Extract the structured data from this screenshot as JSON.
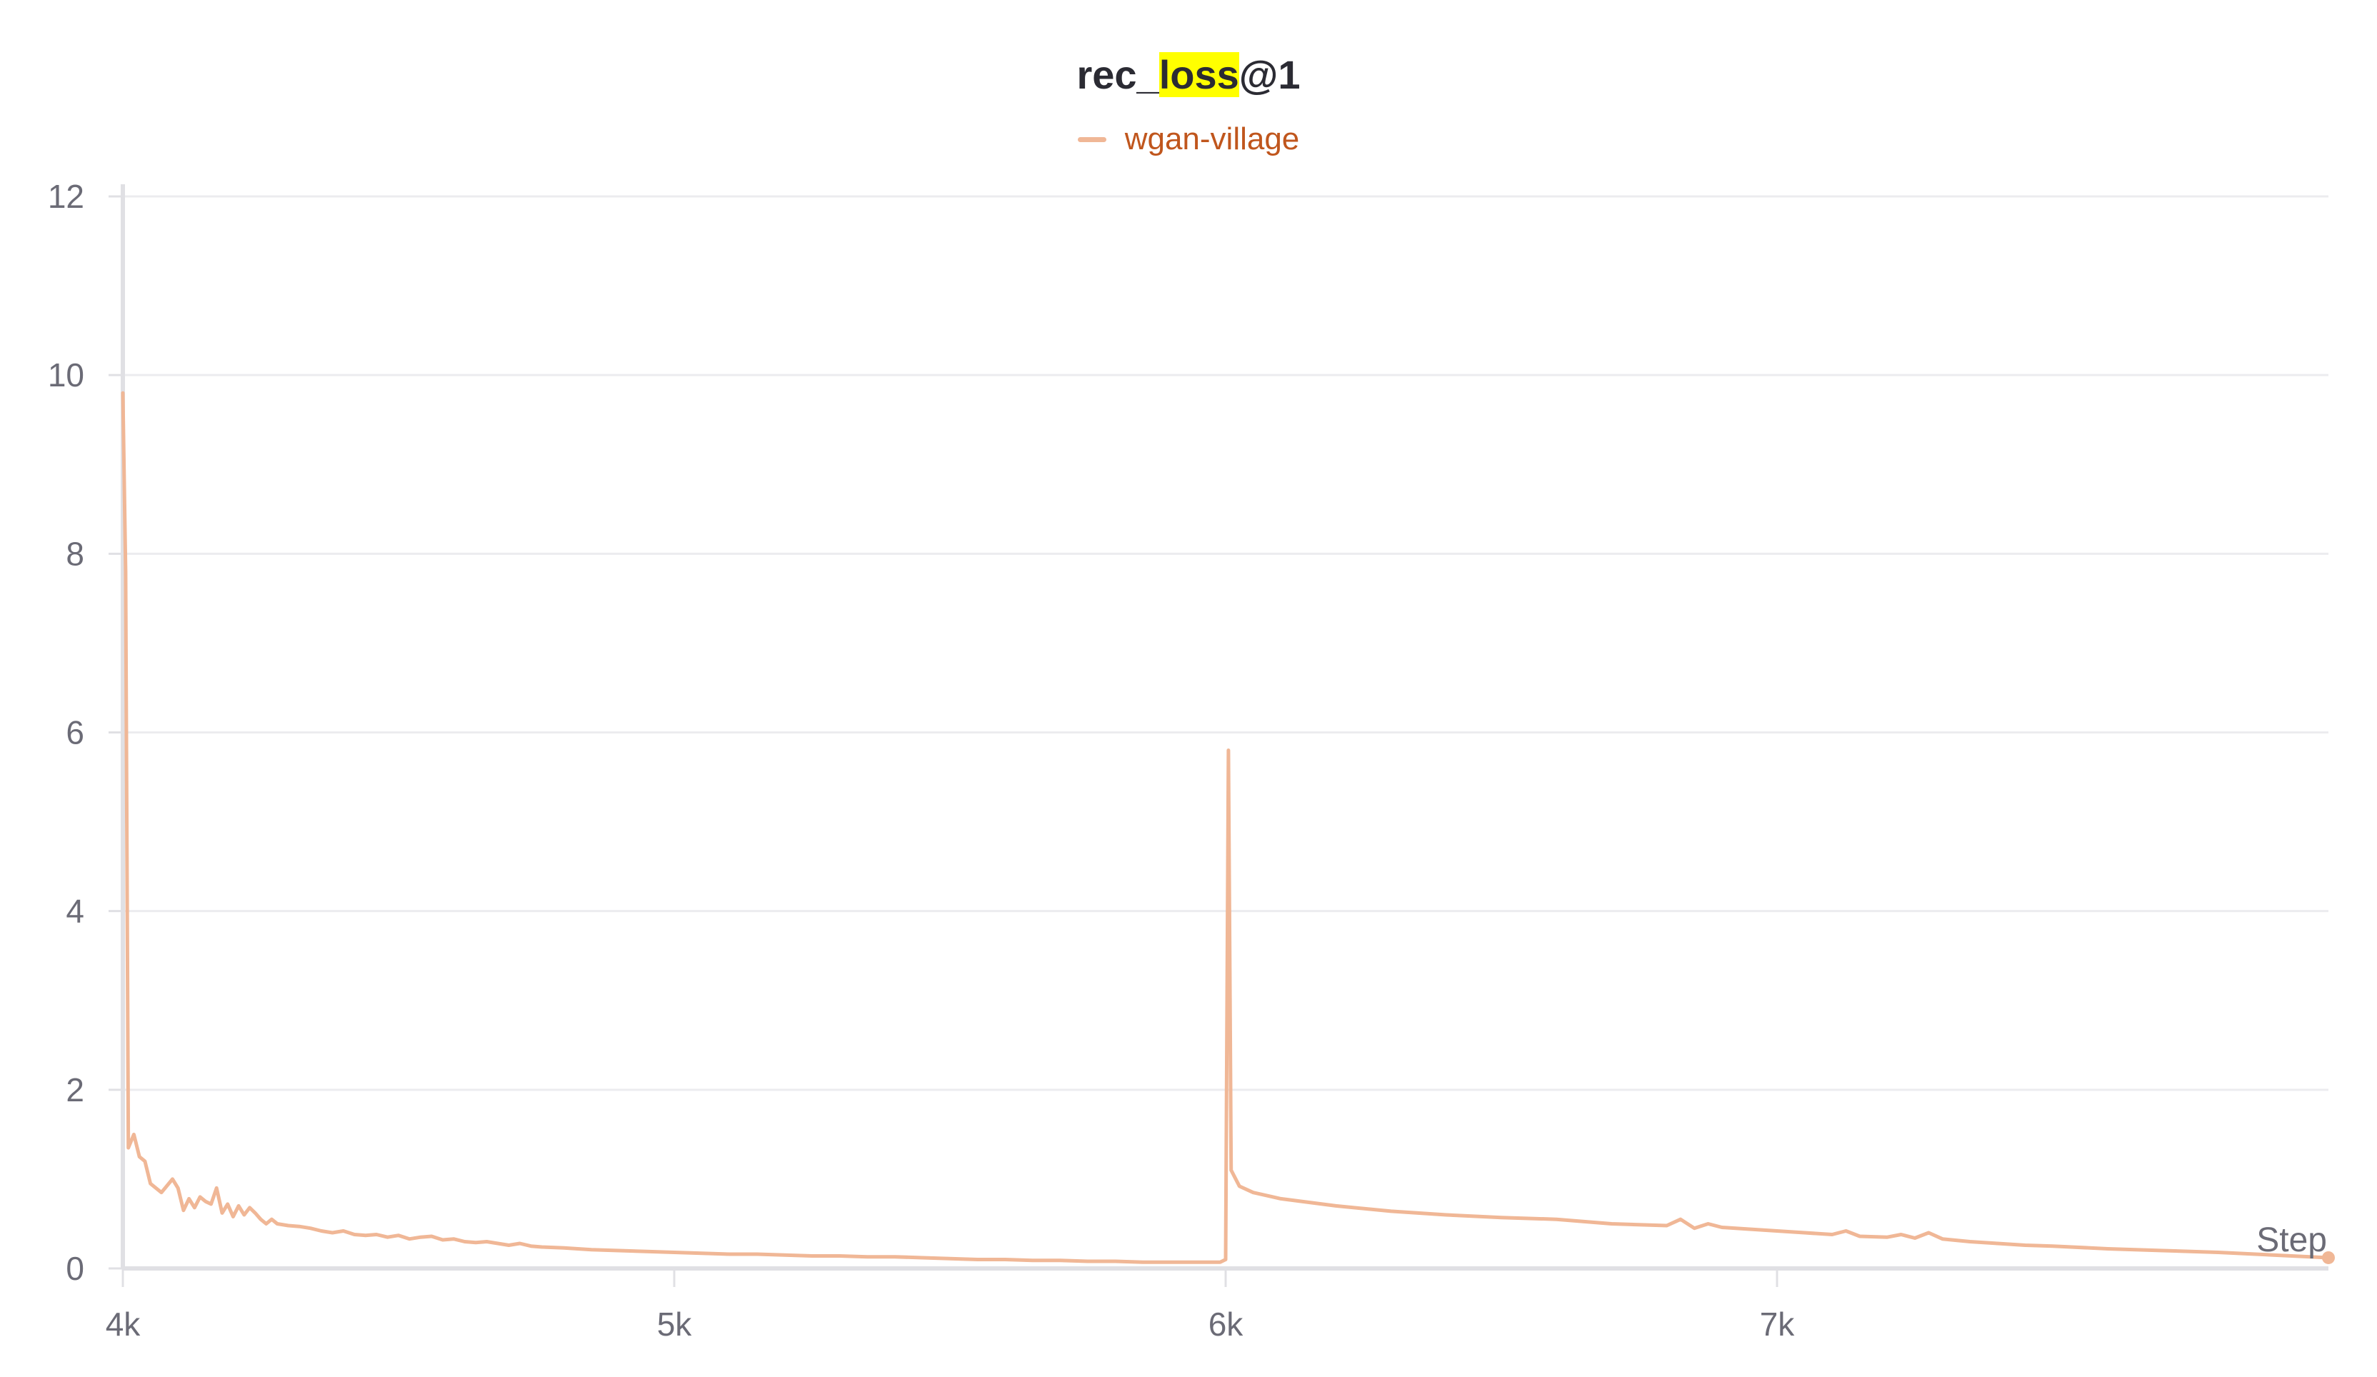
{
  "title": {
    "prefix": "rec_",
    "highlight": "loss",
    "suffix": "@1"
  },
  "colors": {
    "series": "#f0b796",
    "legend_text": "#c0561d",
    "grid": "#ececef",
    "axis": "#e0e0e4",
    "highlight": "#ffff00"
  },
  "chart_data": {
    "type": "line",
    "xlabel": "Step",
    "ylabel": "",
    "xlim": [
      4000,
      8000
    ],
    "ylim": [
      0,
      12
    ],
    "yticks": [
      0,
      2,
      4,
      6,
      8,
      10,
      12
    ],
    "ytick_labels": [
      "0",
      "2",
      "4",
      "6",
      "8",
      "10",
      "12"
    ],
    "xticks": [
      4000,
      5000,
      6000,
      7000
    ],
    "xtick_labels": [
      "4k",
      "5k",
      "6k",
      "7k"
    ],
    "grid": true,
    "legend_position": "top-center",
    "series": [
      {
        "name": "wgan-village",
        "color": "#f0b796",
        "x": [
          4000,
          4005,
          4010,
          4020,
          4030,
          4040,
          4050,
          4070,
          4090,
          4100,
          4110,
          4120,
          4130,
          4140,
          4150,
          4160,
          4170,
          4180,
          4190,
          4200,
          4210,
          4220,
          4230,
          4240,
          4250,
          4260,
          4270,
          4280,
          4300,
          4320,
          4340,
          4360,
          4380,
          4400,
          4420,
          4440,
          4460,
          4480,
          4500,
          4520,
          4540,
          4560,
          4580,
          4600,
          4620,
          4640,
          4660,
          4680,
          4700,
          4720,
          4740,
          4760,
          4800,
          4850,
          4900,
          4950,
          5000,
          5050,
          5100,
          5150,
          5200,
          5250,
          5300,
          5350,
          5400,
          5450,
          5500,
          5550,
          5600,
          5650,
          5700,
          5750,
          5800,
          5850,
          5900,
          5950,
          5990,
          6000,
          6005,
          6010,
          6025,
          6050,
          6100,
          6200,
          6300,
          6400,
          6500,
          6600,
          6700,
          6800,
          6825,
          6850,
          6875,
          6900,
          6950,
          7000,
          7050,
          7100,
          7125,
          7150,
          7200,
          7225,
          7250,
          7275,
          7300,
          7350,
          7400,
          7450,
          7500,
          7600,
          7700,
          7800,
          7900,
          8000
        ],
        "y": [
          9.8,
          7.8,
          1.35,
          1.5,
          1.25,
          1.2,
          0.95,
          0.85,
          1.0,
          0.9,
          0.65,
          0.78,
          0.68,
          0.8,
          0.75,
          0.72,
          0.9,
          0.62,
          0.72,
          0.58,
          0.7,
          0.6,
          0.68,
          0.62,
          0.55,
          0.5,
          0.55,
          0.5,
          0.48,
          0.47,
          0.45,
          0.42,
          0.4,
          0.42,
          0.38,
          0.37,
          0.38,
          0.35,
          0.37,
          0.33,
          0.35,
          0.36,
          0.32,
          0.33,
          0.3,
          0.29,
          0.3,
          0.28,
          0.26,
          0.28,
          0.25,
          0.24,
          0.23,
          0.21,
          0.2,
          0.19,
          0.18,
          0.17,
          0.16,
          0.16,
          0.15,
          0.14,
          0.14,
          0.13,
          0.13,
          0.12,
          0.11,
          0.1,
          0.1,
          0.09,
          0.09,
          0.08,
          0.08,
          0.07,
          0.07,
          0.07,
          0.07,
          0.1,
          5.8,
          1.1,
          0.92,
          0.85,
          0.78,
          0.7,
          0.64,
          0.6,
          0.57,
          0.55,
          0.5,
          0.48,
          0.55,
          0.45,
          0.5,
          0.46,
          0.44,
          0.42,
          0.4,
          0.38,
          0.42,
          0.36,
          0.35,
          0.38,
          0.34,
          0.4,
          0.33,
          0.3,
          0.28,
          0.26,
          0.25,
          0.22,
          0.2,
          0.18,
          0.15,
          0.12
        ]
      }
    ]
  }
}
